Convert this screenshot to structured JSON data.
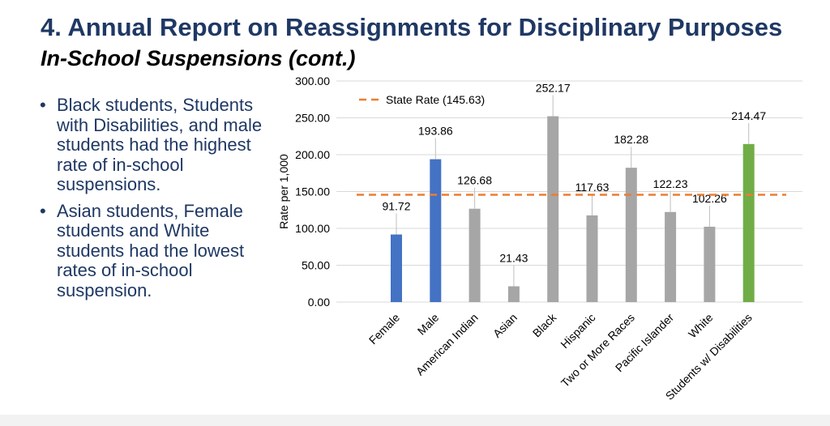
{
  "slide": {
    "title": "4. Annual Report on Reassignments for Disciplinary Purposes",
    "subtitle": "In-School Suspensions (cont.)",
    "bullets": [
      "Black students, Students with Disabilities, and male students had the highest rate of in-school suspensions.",
      "Asian students, Female students and White students had the lowest rates of in-school suspension."
    ],
    "bullet_symbol": "•"
  },
  "chart_data": {
    "type": "bar",
    "title": "",
    "xlabel": "",
    "ylabel": "Rate per 1,000",
    "ylim": [
      0,
      300
    ],
    "ytick_labels": [
      "0.00",
      "50.00",
      "100.00",
      "150.00",
      "200.00",
      "250.00",
      "300.00"
    ],
    "grid": true,
    "categories": [
      "Female",
      "Male",
      "American Indian",
      "Asian",
      "Black",
      "Hispanic",
      "Two or More Races",
      "Pacific Islander",
      "White",
      "Students w/ Disabilities"
    ],
    "values": [
      91.72,
      193.86,
      126.68,
      21.43,
      252.17,
      117.63,
      182.28,
      122.23,
      102.26,
      214.47
    ],
    "value_labels": [
      "91.72",
      "193.86",
      "126.68",
      "21.43",
      "252.17",
      "117.63",
      "182.28",
      "122.23",
      "102.26",
      "214.47"
    ],
    "bar_colors": [
      "#4472c4",
      "#4472c4",
      "#a6a6a6",
      "#a6a6a6",
      "#a6a6a6",
      "#a6a6a6",
      "#a6a6a6",
      "#a6a6a6",
      "#a6a6a6",
      "#70ad47"
    ],
    "reference_line": {
      "label": "State Rate (145.63)",
      "value": 145.63,
      "color": "#ed7d31",
      "style": "dashed"
    },
    "legend_placement": "top-left"
  }
}
